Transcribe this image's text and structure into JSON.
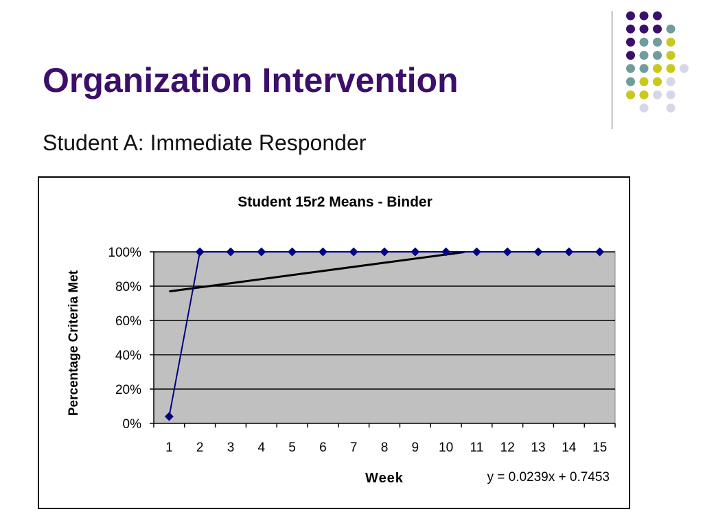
{
  "slide": {
    "title": "Organization Intervention",
    "subtitle": "Student A: Immediate Responder"
  },
  "decoration": {
    "dot_colors": {
      "purple": "#3c0f6b",
      "teal": "#6f9c9c",
      "yellow": "#c8c81e",
      "lavender": "#d6d6ea"
    }
  },
  "chart_data": {
    "type": "line",
    "title": "Student 15r2 Means - Binder",
    "xlabel": "Week",
    "ylabel": "Percentage Criteria Met",
    "categories": [
      "1",
      "2",
      "3",
      "4",
      "5",
      "6",
      "7",
      "8",
      "9",
      "10",
      "11",
      "12",
      "13",
      "14",
      "15"
    ],
    "yticks": [
      "0%",
      "20%",
      "40%",
      "60%",
      "80%",
      "100%"
    ],
    "ylim": [
      0,
      1
    ],
    "grid": true,
    "plot_background": "#c0c0c0",
    "series": [
      {
        "color": "#000080",
        "marker": "diamond",
        "values": [
          0.04,
          1,
          1,
          1,
          1,
          1,
          1,
          1,
          1,
          1,
          1,
          1,
          1,
          1,
          1
        ]
      }
    ],
    "trendline": {
      "type": "linear",
      "slope": 0.0239,
      "intercept": 0.7453,
      "color": "#000000",
      "equation_label": "y = 0.0239x + 0.7453"
    }
  }
}
